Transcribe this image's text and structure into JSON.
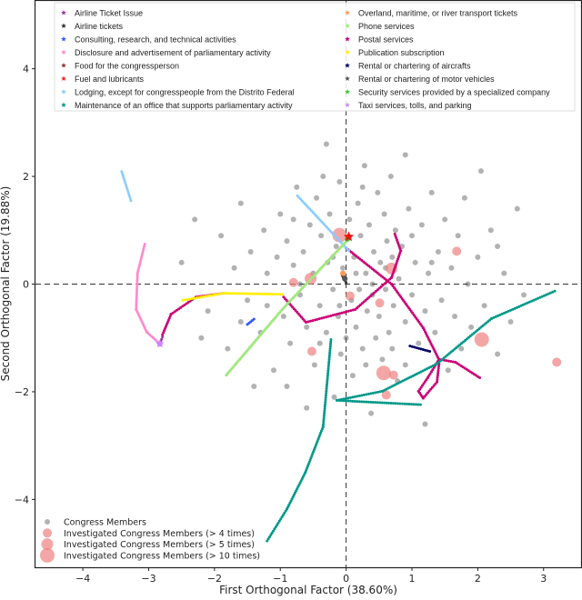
{
  "chart_data": {
    "type": "scatter",
    "xlabel": "First Orthogonal Factor (38.60%)",
    "ylabel": "Second Orthogonal Factor (19.88%)",
    "xlim": [
      -4.72,
      3.57
    ],
    "ylim": [
      -5.26,
      5.26
    ],
    "xticks": [
      -4,
      -3,
      -2,
      -1,
      0,
      1,
      2,
      3
    ],
    "yticks": [
      -4,
      -2,
      0,
      2,
      4
    ],
    "xtick_labels": [
      "−4",
      "−3",
      "−2",
      "−1",
      "0",
      "1",
      "2",
      "3"
    ],
    "ytick_labels": [
      "−4",
      "−2",
      "0",
      "2",
      "4"
    ],
    "reference_lines": {
      "x": 0,
      "y": 0,
      "style": "dashed"
    },
    "category_legend_position": "top",
    "member_legend_position": "bottom-left",
    "category_series": [
      {
        "name": "Airline Ticket Issue",
        "color": "#9933aa",
        "points": [
          [
            -2.83,
            -1.11
          ],
          [
            -2.79,
            -0.98
          ]
        ]
      },
      {
        "name": "Airline tickets",
        "color": "#333333",
        "points": [
          [
            -0.06,
            0.16
          ],
          [
            0,
            0.03
          ]
        ]
      },
      {
        "name": "Consulting, research, and technical activities",
        "color": "#3355ff",
        "points": [
          [
            -1.5,
            -0.75
          ],
          [
            -1.4,
            -0.65
          ]
        ]
      },
      {
        "name": "Disclosure and advertisement of parliamentary activity",
        "color": "#ff88cc",
        "points": [
          [
            -3.06,
            0.74
          ],
          [
            -3.17,
            0.2
          ],
          [
            -3.19,
            -0.47
          ],
          [
            -3.03,
            -0.89
          ],
          [
            -2.83,
            -1.11
          ]
        ]
      },
      {
        "name": "Food for the congressperson",
        "color": "#993333",
        "points": [
          [
            -0.06,
            0.2
          ],
          [
            -0.03,
            0.14
          ]
        ]
      },
      {
        "name": "Fuel and lubricants",
        "color": "#ff2222",
        "points": [
          [
            0.04,
            0.88
          ]
        ]
      },
      {
        "name": "Lodging, except for congresspeople from the Distrito Federal",
        "color": "#88ccff",
        "points": [
          [
            -0.74,
            1.64
          ],
          [
            0.04,
            0.62
          ]
        ]
      },
      {
        "name": "Maintenance of an office that supports parliamentary activity",
        "color": "#009988",
        "points": [
          [
            -1.2,
            -4.77
          ],
          [
            -0.9,
            -4.18
          ],
          [
            -0.62,
            -3.5
          ],
          [
            -0.35,
            -2.65
          ],
          [
            -0.23,
            -1.03
          ]
        ]
      },
      {
        "name": "Overland, maritime, or river transport tickets",
        "color": "#ff9955",
        "points": [
          [
            -0.05,
            0.2
          ]
        ]
      },
      {
        "name": "Phone services",
        "color": "#99ee77",
        "points": [
          [
            -1.82,
            -1.69
          ],
          [
            -0.97,
            -0.47
          ],
          [
            0.05,
            0.85
          ]
        ]
      },
      {
        "name": "Postal services",
        "color": "#cc0077",
        "points": [
          [
            -2.79,
            -0.94
          ],
          [
            -2.66,
            -0.56
          ],
          [
            -2.28,
            -0.24
          ],
          [
            -1.86,
            -0.17
          ]
        ]
      },
      {
        "name": "Publication subscription",
        "color": "#ffee00",
        "points": [
          [
            -2.48,
            -0.3
          ],
          [
            -1.86,
            -0.17
          ],
          [
            -0.97,
            -0.19
          ]
        ]
      },
      {
        "name": "Rental or chartering of aircrafts",
        "color": "#000066",
        "points": [
          [
            0.97,
            -1.15
          ],
          [
            1.27,
            -1.25
          ]
        ]
      },
      {
        "name": "Rental or chartering of motor vehicles",
        "color": "#555555",
        "points": [
          [
            -0.02,
            0.1
          ]
        ]
      },
      {
        "name": "Security services provided by a specialized company",
        "color": "#33cc33",
        "points": [
          [
            0.02,
            0.84
          ]
        ]
      },
      {
        "name": "Taxi services, tolls, and parking",
        "color": "#cc88ff",
        "points": [
          [
            -2.83,
            -1.11
          ]
        ]
      }
    ],
    "extra_paths": [
      {
        "series": "Disclosure and advertisement of parliamentary activity",
        "color": "#ff88cc",
        "points": [
          [
            -1.82,
            -1.69
          ],
          [
            -0.97,
            -0.47
          ],
          [
            0,
            0.79
          ]
        ]
      },
      {
        "series": "Lodging, except for congresspeople from the Distrito Federal",
        "color": "#88ccff",
        "points": [
          [
            -3.41,
            2.09
          ],
          [
            -3.27,
            1.55
          ]
        ]
      },
      {
        "series": "Postal services",
        "color": "#cc0077",
        "points": [
          [
            -0.95,
            -0.24
          ],
          [
            -0.61,
            -0.71
          ],
          [
            0.14,
            -0.47
          ],
          [
            0.69,
            0.12
          ],
          [
            0.83,
            0.62
          ],
          [
            0.74,
            0.93
          ]
        ]
      },
      {
        "series": "Postal services",
        "color": "#cc0077",
        "points": [
          [
            0,
            0.67
          ],
          [
            0.69,
            0
          ],
          [
            1.17,
            -0.81
          ],
          [
            1.41,
            -1.4
          ],
          [
            1.24,
            -1.74
          ],
          [
            1.1,
            -1.99
          ],
          [
            1.17,
            -2.12
          ],
          [
            1.38,
            -1.82
          ],
          [
            1.42,
            -1.4
          ],
          [
            1.66,
            -1.45
          ],
          [
            2.03,
            -1.74
          ]
        ]
      },
      {
        "series": "Maintenance of an office that supports parliamentary activity",
        "color": "#009988",
        "points": [
          [
            3.17,
            -0.13
          ],
          [
            2.21,
            -0.64
          ],
          [
            1.38,
            -1.48
          ],
          [
            0.55,
            -1.99
          ],
          [
            -0.14,
            -2.16
          ],
          [
            1.13,
            -2.24
          ]
        ]
      }
    ],
    "congress_members": [
      [
        -2.5,
        0.4
      ],
      [
        -2.3,
        1.2
      ],
      [
        -2.1,
        -0.5
      ],
      [
        -1.9,
        0.9
      ],
      [
        -1.8,
        -1.2
      ],
      [
        -1.7,
        0.3
      ],
      [
        -1.6,
        1.5
      ],
      [
        -1.5,
        -0.3
      ],
      [
        -1.45,
        0.6
      ],
      [
        -1.3,
        -0.9
      ],
      [
        -1.25,
        1.0
      ],
      [
        -1.2,
        0.2
      ],
      [
        -1.1,
        -1.6
      ],
      [
        -1.05,
        0.5
      ],
      [
        -1.0,
        1.3
      ],
      [
        -0.95,
        -0.6
      ],
      [
        -0.9,
        0.8
      ],
      [
        -0.85,
        -1.1
      ],
      [
        -0.8,
        0.35
      ],
      [
        -0.75,
        1.8
      ],
      [
        -0.7,
        -0.2
      ],
      [
        -0.65,
        0.6
      ],
      [
        -0.6,
        -0.8
      ],
      [
        -0.55,
        1.1
      ],
      [
        -0.5,
        0.2
      ],
      [
        -0.48,
        -1.5
      ],
      [
        -0.45,
        1.6
      ],
      [
        -0.4,
        -0.4
      ],
      [
        -0.38,
        0.9
      ],
      [
        -0.35,
        2.0
      ],
      [
        -0.3,
        -0.9
      ],
      [
        -0.28,
        0.4
      ],
      [
        -0.25,
        1.3
      ],
      [
        -0.2,
        -0.1
      ],
      [
        -0.18,
        -2.1
      ],
      [
        -0.15,
        0.7
      ],
      [
        -0.12,
        -0.6
      ],
      [
        -0.1,
        1.9
      ],
      [
        -0.08,
        -1.3
      ],
      [
        -0.05,
        0.3
      ],
      [
        0.05,
        1.2
      ],
      [
        0.08,
        -0.3
      ],
      [
        0.1,
        -1.7
      ],
      [
        0.12,
        0.5
      ],
      [
        0.15,
        -0.8
      ],
      [
        0.18,
        1.5
      ],
      [
        0.2,
        -0.1
      ],
      [
        0.22,
        0.9
      ],
      [
        0.25,
        -1.2
      ],
      [
        0.28,
        2.2
      ],
      [
        0.3,
        0.2
      ],
      [
        0.32,
        -0.5
      ],
      [
        0.35,
        1.1
      ],
      [
        0.38,
        -2.4
      ],
      [
        0.4,
        -0.2
      ],
      [
        0.42,
        0.6
      ],
      [
        0.45,
        -1.0
      ],
      [
        0.48,
        1.7
      ],
      [
        0.5,
        -0.6
      ],
      [
        0.52,
        0.4
      ],
      [
        0.55,
        -1.4
      ],
      [
        0.58,
        1.3
      ],
      [
        0.6,
        -0.1
      ],
      [
        0.62,
        0.8
      ],
      [
        0.65,
        -0.9
      ],
      [
        0.68,
        2.0
      ],
      [
        0.7,
        0.5
      ],
      [
        0.72,
        -0.4
      ],
      [
        0.75,
        1.0
      ],
      [
        0.78,
        -1.8
      ],
      [
        0.8,
        0.1
      ],
      [
        0.85,
        0.7
      ],
      [
        0.9,
        -0.7
      ],
      [
        0.95,
        1.4
      ],
      [
        1.0,
        -0.2
      ],
      [
        1.05,
        0.4
      ],
      [
        1.1,
        -1.1
      ],
      [
        1.15,
        1.1
      ],
      [
        1.2,
        -0.5
      ],
      [
        1.25,
        0.2
      ],
      [
        1.3,
        1.7
      ],
      [
        1.35,
        -0.9
      ],
      [
        1.4,
        0.6
      ],
      [
        1.45,
        -0.3
      ],
      [
        1.5,
        1.2
      ],
      [
        1.55,
        -1.6
      ],
      [
        1.6,
        0.3
      ],
      [
        1.65,
        -0.6
      ],
      [
        1.7,
        0.9
      ],
      [
        1.75,
        -1.2
      ],
      [
        1.8,
        1.6
      ],
      [
        1.85,
        0.0
      ],
      [
        1.9,
        -0.8
      ],
      [
        2.0,
        0.5
      ],
      [
        2.05,
        2.1
      ],
      [
        2.1,
        -0.4
      ],
      [
        2.2,
        1.0
      ],
      [
        2.3,
        -1.3
      ],
      [
        2.4,
        0.2
      ],
      [
        2.5,
        -0.7
      ],
      [
        2.6,
        1.4
      ],
      [
        2.7,
        -0.2
      ],
      [
        -0.3,
        2.6
      ],
      [
        0.9,
        2.4
      ],
      [
        -1.4,
        -1.9
      ],
      [
        -0.6,
        -2.3
      ],
      [
        1.2,
        -2.6
      ],
      [
        -2.2,
        -1.0
      ],
      [
        -0.9,
        -1.9
      ],
      [
        0.0,
        -1.0
      ],
      [
        -0.2,
        0.5
      ],
      [
        0.3,
        -1.5
      ],
      [
        0.6,
        0.3
      ],
      [
        -0.7,
        0.0
      ],
      [
        1.0,
        0.9
      ],
      [
        0.4,
        0.0
      ],
      [
        -0.4,
        -1.1
      ],
      [
        0.15,
        0.2
      ],
      [
        -0.1,
        -0.4
      ],
      [
        0.7,
        -1.2
      ],
      [
        1.3,
        0.4
      ],
      [
        -1.6,
        -0.7
      ],
      [
        2.3,
        0.7
      ],
      [
        0.9,
        -1.5
      ],
      [
        -0.8,
        1.2
      ],
      [
        0.25,
        1.8
      ],
      [
        -1.2,
        -0.4
      ]
    ],
    "investigated": [
      {
        "x": -0.1,
        "y": 0.91,
        "level": 10
      },
      {
        "x": -0.54,
        "y": 0.1,
        "level": 5
      },
      {
        "x": 0.69,
        "y": 0.29,
        "level": 5
      },
      {
        "x": 1.68,
        "y": 0.61,
        "level": 4
      },
      {
        "x": 2.06,
        "y": -1.03,
        "level": 10
      },
      {
        "x": 3.2,
        "y": -1.45,
        "level": 4
      },
      {
        "x": 0.57,
        "y": -1.65,
        "level": 10
      },
      {
        "x": 0.72,
        "y": -1.69,
        "level": 4
      },
      {
        "x": -0.52,
        "y": -1.25,
        "level": 4
      },
      {
        "x": 0.61,
        "y": -2.06,
        "level": 4
      },
      {
        "x": 0.06,
        "y": -0.22,
        "level": 4
      },
      {
        "x": 0.51,
        "y": -0.35,
        "level": 4
      },
      {
        "x": -0.8,
        "y": 0.03,
        "level": 4
      }
    ],
    "member_legend": [
      {
        "label": "Congress Members",
        "level": 0
      },
      {
        "label": "Investigated Congress Members (> 4 times)",
        "level": 4
      },
      {
        "label": "Investigated Congress Members (> 5 times)",
        "level": 5
      },
      {
        "label": "Investigated Congress Members (> 10 times)",
        "level": 10
      }
    ]
  }
}
